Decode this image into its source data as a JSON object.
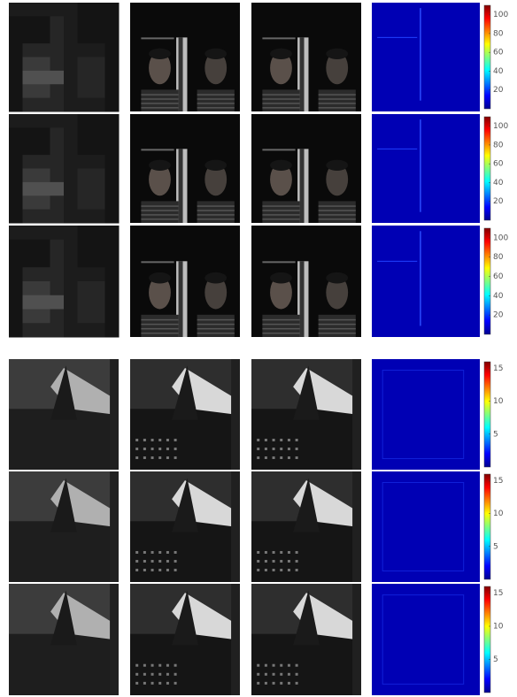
{
  "figure": {
    "colorbars": [
      {
        "lim": [
          0,
          110
        ],
        "ticks": [
          100,
          80,
          60,
          40,
          20
        ]
      },
      {
        "lim": [
          0,
          110
        ],
        "ticks": [
          100,
          80,
          60,
          40,
          20
        ]
      },
      {
        "lim": [
          0,
          110
        ],
        "ticks": [
          100,
          80,
          60,
          40,
          20
        ]
      },
      {
        "lim": [
          0,
          16
        ],
        "ticks": [
          15,
          10,
          5
        ]
      },
      {
        "lim": [
          0,
          16
        ],
        "ticks": [
          15,
          10,
          5
        ]
      },
      {
        "lim": [
          0,
          16
        ],
        "ticks": [
          15,
          10,
          5
        ]
      }
    ]
  }
}
